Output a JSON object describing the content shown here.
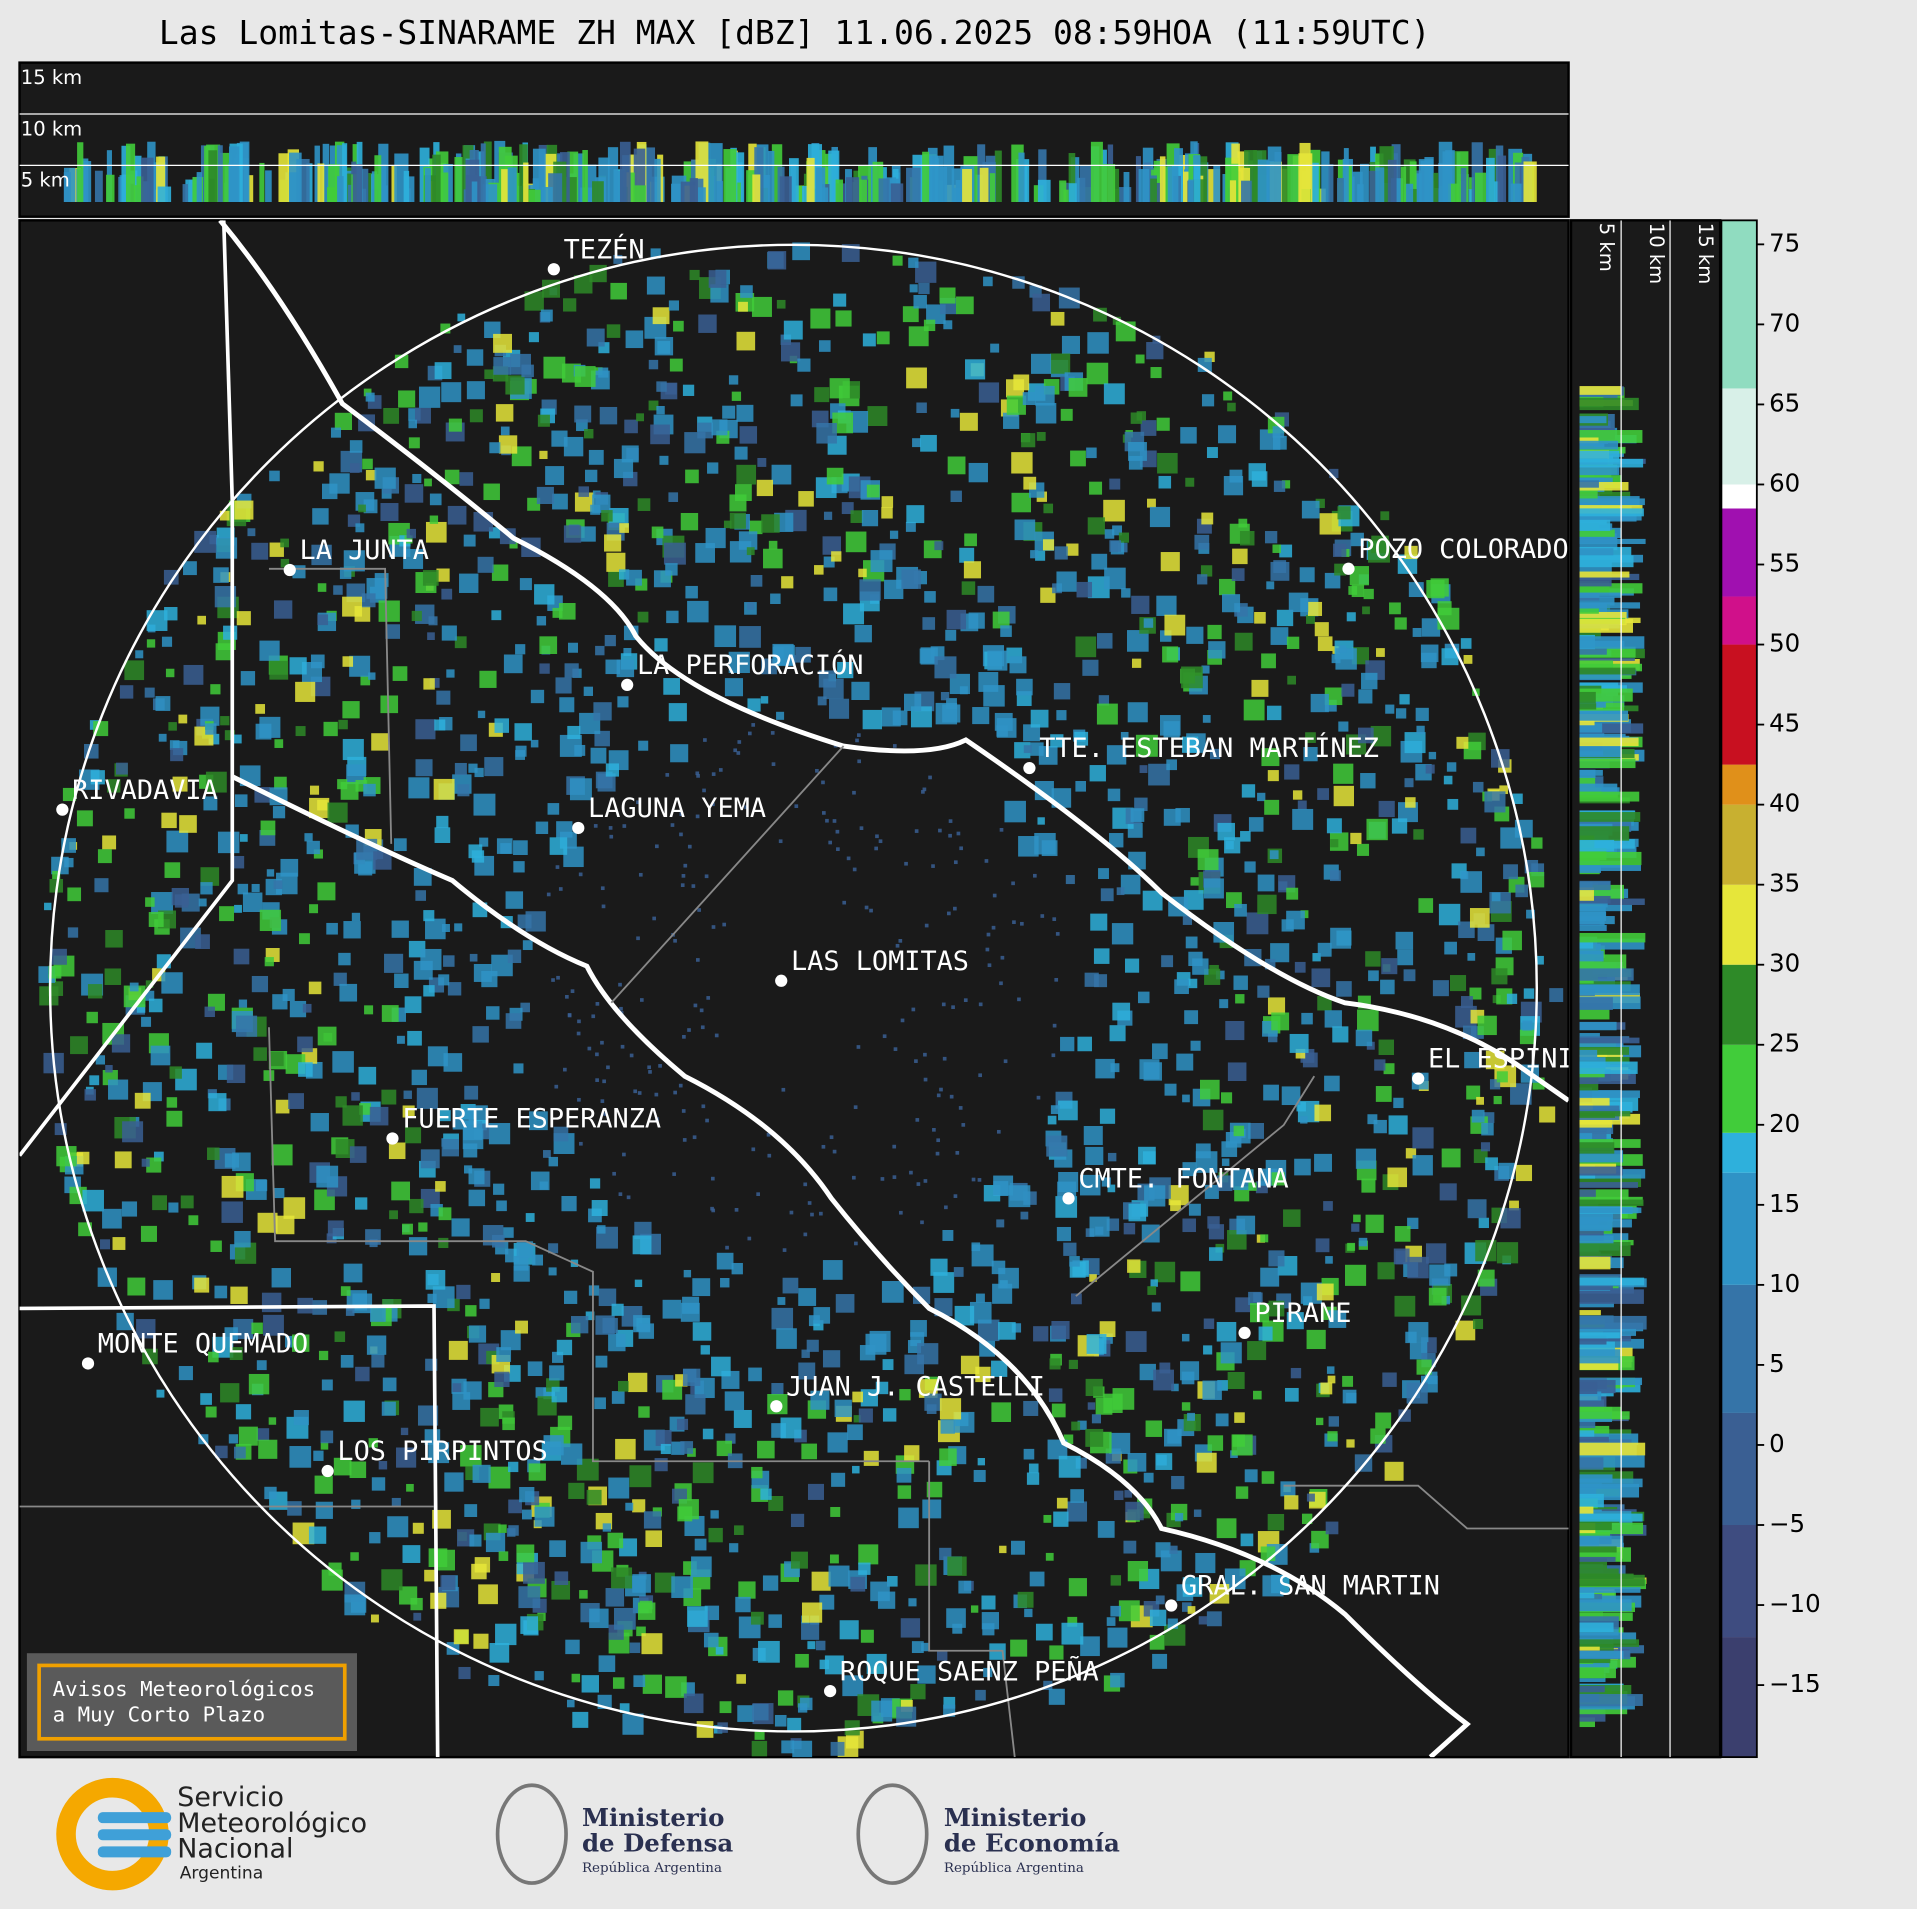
{
  "title": "Las Lomitas-SINARAME ZH MAX [dBZ] 11.06.2025 08:59HOA (11:59UTC)",
  "top_section": {
    "height_labels": [
      "15 km",
      "10 km",
      "5 km"
    ]
  },
  "side_section": {
    "height_labels": [
      "5 km",
      "10 km",
      "15 km"
    ]
  },
  "places": [
    "TEZÉN",
    "LA JUNTA",
    "LA PERFORACIÓN",
    "POZO COLORADO",
    "RIVADAVIA",
    "TTE. ESTEBAN MARTÍNEZ",
    "LAGUNA YEMA",
    "LAS LOMITAS",
    "EL ESPINILLO",
    "FUERTE ESPERANZA",
    "CMTE. FONTANA",
    "PIRANE",
    "MONTE QUEMADO",
    "JUAN J. CASTELLI",
    "LOS PIRPINTOS",
    "GRAL. SAN MARTIN",
    "ROQUE SAENZ PEÑA"
  ],
  "colorbar": {
    "clim": [
      -19.5,
      76.5
    ],
    "ticks": [
      75,
      70,
      65,
      60,
      55,
      50,
      45,
      40,
      35,
      30,
      25,
      20,
      15,
      10,
      5,
      0,
      {
        "value": -5,
        "label": "−5"
      },
      {
        "value": -10,
        "label": "−10"
      },
      {
        "value": -15,
        "label": "−15"
      }
    ],
    "bands": [
      {
        "lim": [
          -19.5,
          -12
        ],
        "color": "#3b3f6e"
      },
      {
        "lim": [
          -12,
          -5
        ],
        "color": "#3e4c80"
      },
      {
        "lim": [
          -5,
          2
        ],
        "color": "#3a5f93"
      },
      {
        "lim": [
          2,
          10
        ],
        "color": "#3574a8"
      },
      {
        "lim": [
          10,
          17
        ],
        "color": "#2f93c6"
      },
      {
        "lim": [
          17,
          19.5
        ],
        "color": "#2eb0dc"
      },
      {
        "lim": [
          19.5,
          25
        ],
        "color": "#41cc3a"
      },
      {
        "lim": [
          25,
          30
        ],
        "color": "#2e8a28"
      },
      {
        "lim": [
          30,
          35
        ],
        "color": "#e6e63a"
      },
      {
        "lim": [
          35,
          40
        ],
        "color": "#c8b030"
      },
      {
        "lim": [
          40,
          42.5
        ],
        "color": "#e0901a"
      },
      {
        "lim": [
          42.5,
          50
        ],
        "color": "#c81020"
      },
      {
        "lim": [
          50,
          53
        ],
        "color": "#d0108a"
      },
      {
        "lim": [
          53,
          58.5
        ],
        "color": "#a010b0"
      },
      {
        "lim": [
          58.5,
          60
        ],
        "color": "#ffffff"
      },
      {
        "lim": [
          60,
          66
        ],
        "color": "#d8f0e8"
      },
      {
        "lim": [
          66,
          76.5
        ],
        "color": "#90dcc0"
      }
    ]
  },
  "notice": {
    "lines": [
      "Avisos Meteorológicos",
      "a Muy Corto Plazo"
    ]
  },
  "logos": [
    {
      "lines": [
        "Servicio",
        "Meteorológico",
        "Nacional",
        "Argentina"
      ]
    },
    {
      "lines": [
        "Ministerio",
        "de Defensa",
        "República Argentina"
      ]
    },
    {
      "lines": [
        "Ministerio",
        "de Economía",
        "República Argentina"
      ]
    }
  ]
}
